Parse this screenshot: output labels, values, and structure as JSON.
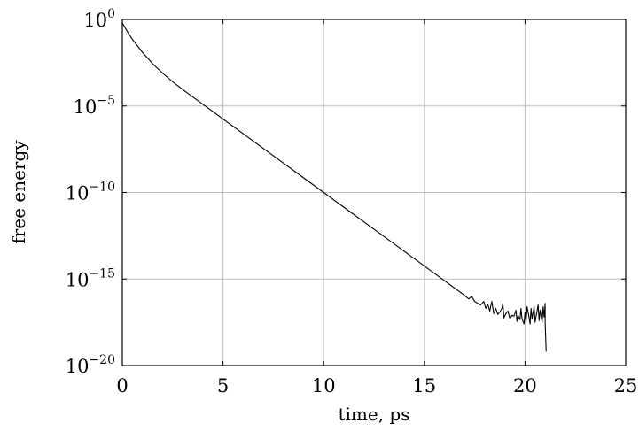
{
  "chart_data": {
    "type": "line",
    "xlabel": "time, ps",
    "ylabel": "free energy",
    "xlim": [
      0,
      25
    ],
    "ylim_log10": [
      -20,
      0
    ],
    "y_scale": "log",
    "grid": true,
    "x_ticks": [
      {
        "value": 0,
        "label": "0"
      },
      {
        "value": 5,
        "label": "5"
      },
      {
        "value": 10,
        "label": "10"
      },
      {
        "value": 15,
        "label": "15"
      },
      {
        "value": 20,
        "label": "20"
      },
      {
        "value": 25,
        "label": "25"
      }
    ],
    "y_ticks": [
      {
        "value": 0,
        "base": "10",
        "exp": "0"
      },
      {
        "value": -5,
        "base": "10",
        "exp": "−5"
      },
      {
        "value": -10,
        "base": "10",
        "exp": "−10"
      },
      {
        "value": -15,
        "base": "10",
        "exp": "−15"
      },
      {
        "value": -20,
        "base": "10",
        "exp": "−20"
      }
    ],
    "series": [
      {
        "color": "#000000",
        "x": [
          0,
          0.25,
          0.5,
          1,
          1.5,
          2,
          2.5,
          3,
          4,
          5,
          6,
          7,
          8,
          9,
          10,
          11,
          12,
          13,
          14,
          15,
          16,
          17,
          17.2,
          17.35,
          17.5,
          17.65,
          17.8,
          17.95,
          18.05,
          18.15,
          18.25,
          18.35,
          18.45,
          18.55,
          18.65,
          18.75,
          18.85,
          18.9,
          18.95,
          19.05,
          19.15,
          19.25,
          19.35,
          19.45,
          19.55,
          19.6,
          19.65,
          19.75,
          19.8,
          19.85,
          19.95,
          20.0,
          20.05,
          20.1,
          20.2,
          20.25,
          20.3,
          20.35,
          20.45,
          20.5,
          20.55,
          20.65,
          20.7,
          20.75,
          20.85,
          20.9,
          20.95,
          21.0,
          21.0,
          21.05
        ],
        "log10_y": [
          -0.2,
          -0.7,
          -1.15,
          -1.9,
          -2.55,
          -3.1,
          -3.6,
          -4.05,
          -4.9,
          -5.75,
          -6.6,
          -7.45,
          -8.3,
          -9.15,
          -10.0,
          -10.85,
          -11.7,
          -12.55,
          -13.4,
          -14.25,
          -15.1,
          -15.95,
          -16.15,
          -16.0,
          -16.3,
          -16.4,
          -16.5,
          -16.3,
          -16.7,
          -16.45,
          -16.85,
          -16.3,
          -17.0,
          -16.7,
          -17.05,
          -16.9,
          -16.7,
          -16.4,
          -17.25,
          -17.0,
          -16.85,
          -17.3,
          -17.1,
          -17.15,
          -16.8,
          -17.45,
          -17.1,
          -17.35,
          -16.7,
          -17.3,
          -17.6,
          -16.9,
          -17.5,
          -16.6,
          -17.2,
          -17.6,
          -16.7,
          -17.3,
          -16.6,
          -17.5,
          -17.15,
          -16.5,
          -17.4,
          -16.8,
          -17.5,
          -16.6,
          -17.2,
          -16.4,
          -17.5,
          -19.2
        ]
      }
    ]
  }
}
